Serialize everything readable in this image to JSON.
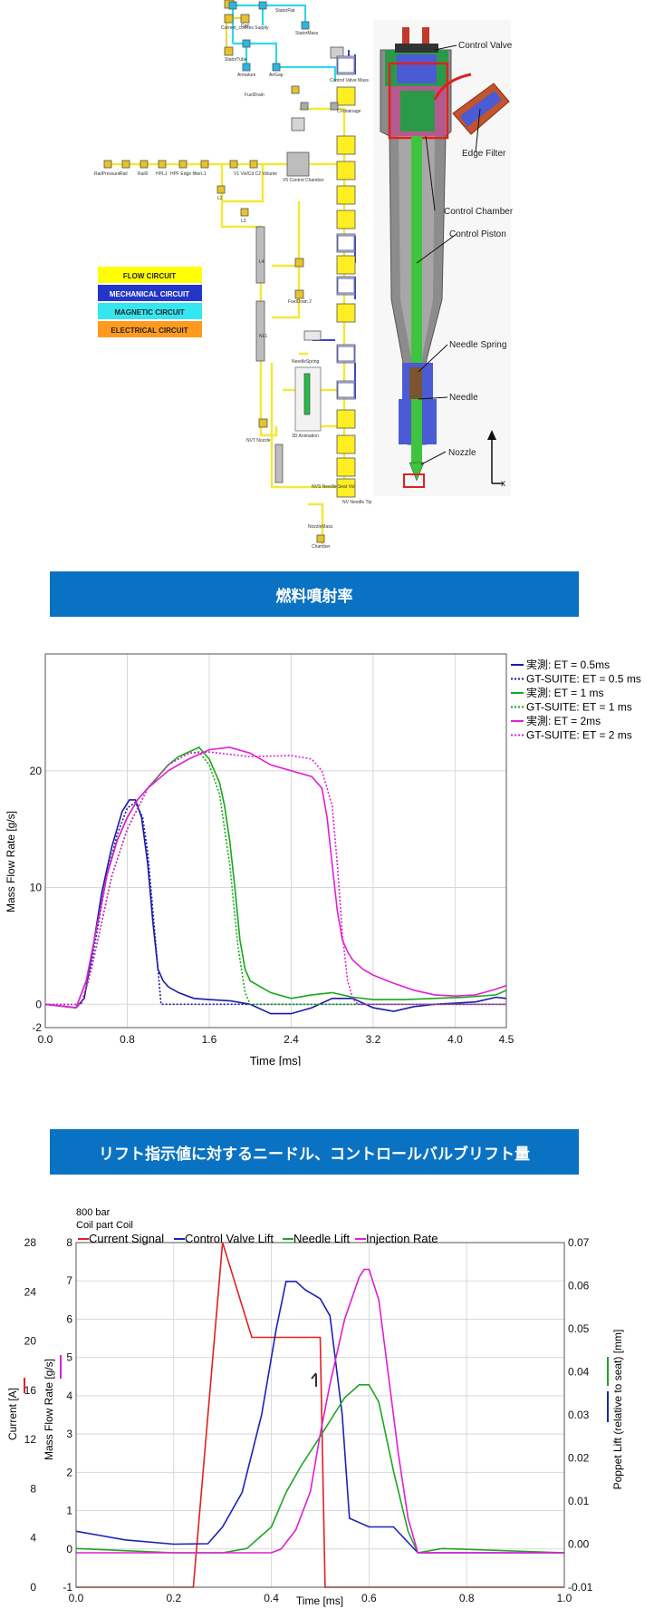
{
  "diagram": {
    "legend": [
      "FLOW CIRCUIT",
      "MECHANICAL CIRCUIT",
      "MAGNETIC CIRCUIT",
      "ELECTRICAL CIRCUIT"
    ],
    "legend_colors": [
      "#ffff00",
      "#2436c8",
      "#33e6f0",
      "#ff9a1f"
    ],
    "labels": [
      "Control Valve",
      "Edge Filter",
      "Control Chamber",
      "Control Piston",
      "Needle Spring",
      "Needle",
      "Nozzle",
      "x"
    ],
    "flow_nodes": [
      "RailPressure",
      "Rail",
      "Rail0",
      "HPL1",
      "HPF Edge filter",
      "L1",
      "L2",
      "V1 Vol/Cd C2 Volume",
      "V5 Control Chamber",
      "L3",
      "L4",
      "NL1",
      "FuelDrain",
      "FuelDrain 2",
      "NVT Nozzle",
      "NVS Needle Seat Vol",
      "NV Needle Tip",
      "NozzleMass",
      "Chamber",
      "NeedleSpring",
      "3D Animation"
    ],
    "circuit_nodes": [
      "Current_coilRes Supply",
      "Coil",
      "StatorFlat",
      "StatorMass",
      "StatorTube",
      "Armature",
      "AirGap",
      "Control Valve Mass",
      "CVdrainage"
    ]
  },
  "section1": {
    "title": "燃料噴射率"
  },
  "chart1": {
    "chart_data": {
      "type": "line",
      "xlabel": "Time [ms]",
      "ylabel": "Mass Flow Rate [g/s]",
      "xlim": [
        0,
        4.5
      ],
      "ylim": [
        -2,
        30
      ],
      "xticks": [
        "0.0",
        "0.8",
        "1.6",
        "2.4",
        "3.2",
        "4.0",
        "4.5"
      ],
      "yticks": [
        "-2",
        "0",
        "10",
        "20"
      ],
      "grid": true,
      "legend_position": "right-top",
      "series": [
        {
          "name": "実測: ET = 0.5ms",
          "color": "#1a1aa8",
          "dash": false,
          "x": [
            0,
            0.3,
            0.38,
            0.45,
            0.55,
            0.65,
            0.75,
            0.82,
            0.88,
            0.94,
            1.0,
            1.05,
            1.1,
            1.15,
            1.2,
            1.3,
            1.45,
            1.6,
            1.8,
            2.0,
            2.2,
            2.4,
            2.6,
            2.8,
            3.0,
            3.2,
            3.4,
            3.6,
            3.8,
            4.0,
            4.2,
            4.4,
            4.5
          ],
          "y": [
            0,
            -0.3,
            0.5,
            4,
            9.5,
            13.5,
            16.5,
            17.5,
            17.5,
            16,
            12,
            7,
            3,
            2,
            1.5,
            1,
            0.5,
            0.4,
            0.3,
            0,
            -0.8,
            -0.8,
            -0.3,
            0.5,
            0.5,
            -0.3,
            -0.6,
            -0.2,
            0,
            0.1,
            0.2,
            0.6,
            0.5
          ]
        },
        {
          "name": "GT-SUITE: ET = 0.5 ms",
          "color": "#1a1aa8",
          "dash": true,
          "x": [
            0,
            0.35,
            0.42,
            0.5,
            0.6,
            0.7,
            0.8,
            0.88,
            0.95,
            1.0,
            1.05,
            1.1,
            1.13,
            1.2,
            4.5
          ],
          "y": [
            0,
            0,
            2,
            6,
            11,
            14.5,
            16.8,
            17.3,
            16,
            13,
            8,
            3,
            0,
            0,
            0
          ]
        },
        {
          "name": "実測: ET = 1 ms",
          "color": "#17a81a",
          "dash": false,
          "x": [
            0,
            0.3,
            0.4,
            0.5,
            0.6,
            0.7,
            0.8,
            0.9,
            1.0,
            1.1,
            1.2,
            1.3,
            1.4,
            1.5,
            1.6,
            1.7,
            1.75,
            1.8,
            1.85,
            1.9,
            1.95,
            2.0,
            2.1,
            2.2,
            2.4,
            2.6,
            2.8,
            3.0,
            3.2,
            3.5,
            3.8,
            4.1,
            4.4,
            4.5
          ],
          "y": [
            0,
            -0.3,
            2,
            6.5,
            11,
            14,
            16,
            17.5,
            18.5,
            19.5,
            20.5,
            21.2,
            21.6,
            22,
            21,
            19,
            17,
            14,
            10,
            5.5,
            3,
            2,
            1.5,
            1,
            0.5,
            0.8,
            1,
            0.6,
            0.4,
            0.4,
            0.5,
            0.6,
            0.8,
            1.2
          ]
        },
        {
          "name": "GT-SUITE: ET = 1 ms",
          "color": "#17a81a",
          "dash": true,
          "x": [
            0,
            0.35,
            0.45,
            0.55,
            0.65,
            0.8,
            1.0,
            1.2,
            1.4,
            1.5,
            1.6,
            1.7,
            1.8,
            1.88,
            1.95,
            2.0,
            4.5
          ],
          "y": [
            0,
            0,
            3,
            7,
            11,
            15,
            18.5,
            20.5,
            21.5,
            21.6,
            20.5,
            18,
            12,
            5,
            1,
            0,
            0
          ]
        },
        {
          "name": "実測: ET = 2ms",
          "color": "#e21fd6",
          "dash": false,
          "x": [
            0,
            0.3,
            0.4,
            0.5,
            0.6,
            0.7,
            0.8,
            0.9,
            1.0,
            1.2,
            1.4,
            1.6,
            1.8,
            2.0,
            2.2,
            2.4,
            2.6,
            2.7,
            2.75,
            2.8,
            2.85,
            2.9,
            2.95,
            3.0,
            3.1,
            3.2,
            3.4,
            3.6,
            3.8,
            4.0,
            4.2,
            4.4,
            4.5
          ],
          "y": [
            0,
            -0.3,
            2,
            6.5,
            11,
            14,
            16,
            17.5,
            18.5,
            20,
            21,
            21.8,
            22,
            21.5,
            20.5,
            20,
            19.5,
            18.5,
            16,
            12,
            8,
            5.5,
            4.5,
            3.8,
            3,
            2.5,
            1.8,
            1.2,
            0.8,
            0.7,
            0.8,
            1.3,
            1.6
          ]
        },
        {
          "name": "GT-SUITE: ET = 2 ms",
          "color": "#e21fd6",
          "dash": true,
          "x": [
            0,
            0.35,
            0.45,
            0.55,
            0.65,
            0.8,
            1.0,
            1.2,
            1.4,
            1.6,
            2.0,
            2.4,
            2.6,
            2.7,
            2.8,
            2.85,
            2.9,
            2.95,
            3.0,
            3.05,
            4.5
          ],
          "y": [
            0,
            0,
            3,
            7,
            11,
            15,
            18.5,
            20.5,
            21.5,
            21.6,
            21.2,
            21.3,
            21,
            20,
            17,
            12,
            6,
            2,
            0.5,
            0,
            0
          ]
        }
      ]
    }
  },
  "section2": {
    "title": "リフト指示値に対するニードル、コントロールバルブリフト量"
  },
  "chart2": {
    "chart_data": {
      "type": "line",
      "title": "800 bar",
      "subtitle": "Coil part Coil",
      "xlabel": "Time [ms]",
      "ylabel_current": "Current [A]",
      "ylabel_flow": "Mass Flow Rate [g/s]",
      "ylabel_right": "Poppet Lift (relative to seat) [mm]",
      "xlim": [
        0,
        1
      ],
      "xticks": [
        "0.0",
        "0.2",
        "0.4",
        "0.6",
        "0.8",
        "1.0"
      ],
      "yticks_current": [
        "0",
        "4",
        "8",
        "12",
        "16",
        "20",
        "24",
        "28"
      ],
      "yticks_flow": [
        "-1",
        "0",
        "1",
        "2",
        "3",
        "4",
        "5",
        "6",
        "7",
        "8"
      ],
      "yticks_right": [
        "-0.01",
        "0.00",
        "0.01",
        "0.02",
        "0.03",
        "0.04",
        "0.05",
        "0.06",
        "0.07"
      ],
      "grid": true,
      "legend_position": "top",
      "series": [
        {
          "name": "Current Signal",
          "color": "#e0201f",
          "axis": "current",
          "x": [
            0,
            0.24,
            0.3,
            0.36,
            0.5,
            0.51,
            1.0
          ],
          "y": [
            0,
            0,
            28,
            20.3,
            20.3,
            0,
            0
          ]
        },
        {
          "name": "Control Valve Lift",
          "color": "#1a23b4",
          "axis": "lift",
          "x": [
            0.0,
            0.05,
            0.1,
            0.2,
            0.27,
            0.3,
            0.34,
            0.38,
            0.41,
            0.43,
            0.45,
            0.47,
            0.5,
            0.52,
            0.545,
            0.56,
            0.6,
            0.65,
            0.7,
            1.0
          ],
          "y": [
            0.003,
            0.002,
            0.001,
            0,
            0.0001,
            0.004,
            0.012,
            0.03,
            0.05,
            0.061,
            0.061,
            0.059,
            0.057,
            0.053,
            0.03,
            0.006,
            0.004,
            0.004,
            -0.002,
            -0.002
          ]
        },
        {
          "name": "Needle Lift",
          "color": "#20a520",
          "axis": "lift",
          "x": [
            0.0,
            0.2,
            0.3,
            0.35,
            0.38,
            0.4,
            0.43,
            0.46,
            0.5,
            0.55,
            0.58,
            0.6,
            0.62,
            0.65,
            0.68,
            0.7,
            0.75,
            1.0
          ],
          "y": [
            -0.001,
            -0.002,
            -0.002,
            -0.001,
            0.002,
            0.004,
            0.012,
            0.018,
            0.025,
            0.034,
            0.037,
            0.037,
            0.033,
            0.017,
            0.003,
            -0.002,
            -0.001,
            -0.002
          ]
        },
        {
          "name": "Injection Rate",
          "color": "#df1ed5",
          "axis": "flow",
          "x": [
            0.0,
            0.4,
            0.42,
            0.45,
            0.48,
            0.5,
            0.52,
            0.55,
            0.58,
            0.59,
            0.6,
            0.62,
            0.64,
            0.66,
            0.68,
            0.7,
            1.0
          ],
          "y": [
            -0.1,
            -0.1,
            0,
            0.5,
            1.5,
            3,
            4.3,
            6,
            7.1,
            7.3,
            7.3,
            6.5,
            4.5,
            2.5,
            0.8,
            -0.1,
            -0.1
          ]
        }
      ]
    }
  }
}
